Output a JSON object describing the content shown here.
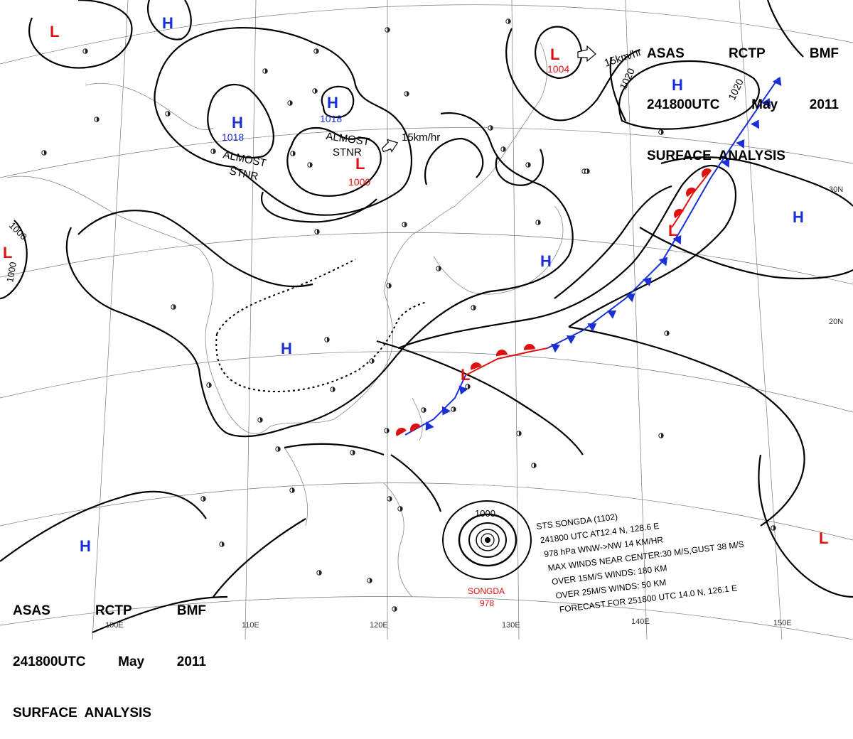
{
  "header_top_right": {
    "line1": [
      "ASAS",
      "RCTP",
      "BMF"
    ],
    "line2": [
      "241800UTC",
      "May",
      "2011"
    ],
    "line3": "SURFACE  ANALYSIS"
  },
  "header_bottom_left": {
    "line1": [
      "ASAS",
      "RCTP",
      "BMF"
    ],
    "line2": [
      "241800UTC",
      "May",
      "2011"
    ],
    "line3": "SURFACE  ANALYSIS"
  },
  "pressure_centers": {
    "high_symbol": "H",
    "low_symbol": "L",
    "high_color": "#1a2fd6",
    "low_color": "#e01010",
    "high_1018_west_value": "1018",
    "high_1018_center_value": "1018",
    "low_1000_value": "1000",
    "low_1004_value": "1004"
  },
  "stationary_labels": {
    "west_almost": "ALMOST",
    "west_stnr": "STNR",
    "center_almost": "ALMOST",
    "center_stnr": "STNR"
  },
  "motion_labels": {
    "center": "15km/hr",
    "northeast": "15km/hr"
  },
  "isobar_labels": {
    "ne_a": "1020",
    "ne_b": "1020",
    "west_a": "1000",
    "west_b": "1000",
    "typhoon": "1000"
  },
  "latitude_labels": [
    "30N",
    "20N"
  ],
  "longitude_labels": [
    "100E",
    "110E",
    "120E",
    "130E",
    "140E",
    "150E"
  ],
  "typhoon": {
    "name_label": "SONGDA",
    "pressure_label": "978",
    "info_lines": [
      "STS  SONGDA  (1102)",
      "241800 UTC  AT12.4 N, 128.6 E",
      "978 hPa  WNW->NW  14 KM/HR",
      "MAX WINDS NEAR CENTER:30 M/S,GUST 38 M/S",
      "OVER 15M/S WINDS: 180 KM",
      "OVER 25M/S WINDS: 50 KM",
      "FORECAST FOR 251800 UTC 14.0 N, 126.1 E"
    ]
  },
  "colors": {
    "warm_front": "#e01010",
    "cold_front": "#1a2fd6",
    "isobar": "#000000",
    "grid": "#777777"
  }
}
